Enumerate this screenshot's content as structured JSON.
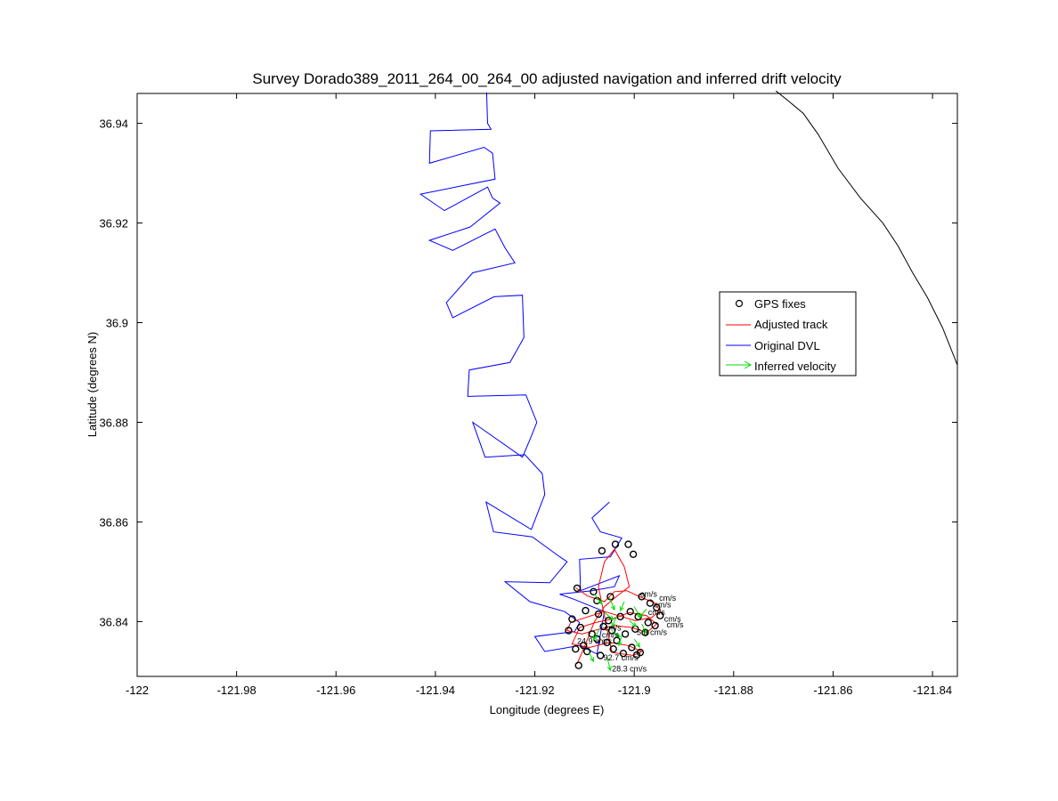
{
  "chart_data": {
    "type": "scatter",
    "title": "Survey Dorado389_2011_264_00_264_00 adjusted navigation and inferred drift velocity",
    "xlabel": "Longitude (degrees E)",
    "ylabel": "Latitude (degrees N)",
    "xlim": [
      -122.0,
      -121.835
    ],
    "ylim": [
      36.829,
      36.946
    ],
    "xticks": [
      -122,
      -121.98,
      -121.96,
      -121.94,
      -121.92,
      -121.9,
      -121.88,
      -121.86,
      -121.84
    ],
    "xtick_labels": [
      "-122",
      "-121.98",
      "-121.96",
      "-121.94",
      "-121.92",
      "-121.9",
      "-121.88",
      "-121.86",
      "-121.84"
    ],
    "yticks": [
      36.84,
      36.86,
      36.88,
      36.9,
      36.92,
      36.94
    ],
    "ytick_labels": [
      "36.84",
      "36.86",
      "36.88",
      "36.9",
      "36.92",
      "36.94"
    ],
    "grid": false,
    "legend_position": "right",
    "colors": {
      "gps": "#000000",
      "adjusted": "#ff0000",
      "dvl": "#0000ff",
      "velocity": "#00dd00",
      "coastline": "#000000"
    },
    "series": [
      {
        "name": "GPS fixes",
        "marker": "circle",
        "x": [
          -121.9115,
          -121.9082,
          -121.9065,
          -121.9038,
          -121.9012,
          -121.9002,
          -121.8985,
          -121.8968,
          -121.8955,
          -121.8948,
          -121.9125,
          -121.9098,
          -121.9072,
          -121.9052,
          -121.9028,
          -121.9008,
          -121.8992,
          -121.8972,
          -121.8958,
          -121.9132,
          -121.9108,
          -121.9085,
          -121.9062,
          -121.9045,
          -121.9018,
          -121.8998,
          -121.8978,
          -121.9118,
          -121.9102,
          -121.9075,
          -121.9055,
          -121.9035,
          -121.9005,
          -121.8988,
          -121.9095,
          -121.9068,
          -121.9042,
          -121.9022,
          -121.8995,
          -121.9112,
          -121.9075,
          -121.9048
        ],
        "y": [
          36.8467,
          36.846,
          36.8542,
          36.8555,
          36.8555,
          36.8535,
          36.845,
          36.8437,
          36.8428,
          36.8412,
          36.8405,
          36.8422,
          36.8415,
          36.8402,
          36.841,
          36.842,
          36.841,
          36.8398,
          36.8392,
          36.8382,
          36.8388,
          36.8375,
          36.839,
          36.8382,
          36.8375,
          36.8385,
          36.8378,
          36.8345,
          36.8352,
          36.8365,
          36.8358,
          36.8362,
          36.8348,
          36.8338,
          36.834,
          36.8332,
          36.8345,
          36.8336,
          36.8333,
          36.8312,
          36.8442,
          36.845
        ]
      },
      {
        "name": "Adjusted track",
        "line": "solid",
        "x": [
          -121.9118,
          -121.9095,
          -121.906,
          -121.904,
          -121.9015,
          -121.8985,
          -121.896,
          -121.8948,
          -121.8965,
          -121.8998,
          -121.9025,
          -121.906,
          -121.9092,
          -121.9128,
          -121.9135,
          -121.9105,
          -121.907,
          -121.904,
          -121.9005,
          -121.8975,
          -121.8955,
          -121.8975,
          -121.901,
          -121.9045,
          -121.9078,
          -121.911,
          -121.9125,
          -121.909,
          -121.905,
          -121.9012,
          -121.8985,
          -121.9002,
          -121.9045,
          -121.9072,
          -121.906,
          -121.904,
          -121.902,
          -121.901,
          -121.903,
          -121.906,
          -121.908,
          -121.91,
          -121.9115
        ],
        "y": [
          36.8468,
          36.8452,
          36.844,
          36.846,
          36.8462,
          36.8448,
          36.8438,
          36.8422,
          36.8408,
          36.8402,
          36.841,
          36.842,
          36.841,
          36.8398,
          36.8382,
          36.8375,
          36.8385,
          36.8392,
          36.8388,
          36.8378,
          36.8395,
          36.8412,
          36.8418,
          36.8405,
          36.8398,
          36.8388,
          36.8355,
          36.8348,
          36.8358,
          36.8352,
          36.834,
          36.8332,
          36.8338,
          36.847,
          36.852,
          36.8545,
          36.851,
          36.847,
          36.8455,
          36.843,
          36.84,
          36.835,
          36.8315
        ]
      },
      {
        "name": "Original DVL",
        "line": "solid",
        "x": [
          -121.9297,
          -121.9295,
          -121.9288,
          -121.941,
          -121.9412,
          -121.9302,
          -121.9285,
          -121.928,
          -121.943,
          -121.9382,
          -121.9295,
          -121.9285,
          -121.927,
          -121.933,
          -121.9412,
          -121.9365,
          -121.928,
          -121.926,
          -121.924,
          -121.9325,
          -121.9378,
          -121.9365,
          -121.9282,
          -121.9225,
          -121.9222,
          -121.925,
          -121.9332,
          -121.9335,
          -121.9218,
          -121.9196,
          -121.921,
          -121.9225,
          -121.9325,
          -121.93,
          -121.922,
          -121.9185,
          -121.918,
          -121.9207,
          -121.9298,
          -121.9283,
          -121.9205,
          -121.915,
          -121.9135,
          -121.917,
          -121.926,
          -121.921,
          -121.914,
          -121.911,
          -121.912,
          -121.92,
          -121.918,
          -121.911,
          -121.9075,
          -121.906,
          -121.9122,
          -121.915,
          -121.9085,
          -121.904,
          -121.903,
          -121.9108,
          -121.911,
          -121.9048,
          -121.9025,
          -121.9068,
          -121.9085,
          -121.905
        ],
        "y": [
          36.9462,
          36.94,
          36.9388,
          36.9385,
          36.932,
          36.9352,
          36.934,
          36.9288,
          36.9258,
          36.9225,
          36.9272,
          36.925,
          36.924,
          36.9192,
          36.9165,
          36.9145,
          36.9188,
          36.915,
          36.912,
          36.91,
          36.904,
          36.901,
          36.9052,
          36.9055,
          36.897,
          36.892,
          36.8905,
          36.8852,
          36.8855,
          36.88,
          36.8765,
          36.873,
          36.88,
          36.873,
          36.8735,
          36.8697,
          36.8655,
          36.8585,
          36.864,
          36.858,
          36.857,
          36.853,
          36.852,
          36.8478,
          36.848,
          36.844,
          36.842,
          36.8398,
          36.838,
          36.837,
          36.834,
          36.8352,
          36.8335,
          36.842,
          36.8445,
          36.8455,
          36.8462,
          36.847,
          36.8492,
          36.8462,
          36.8525,
          36.853,
          36.8568,
          36.858,
          36.8608,
          36.864
        ]
      },
      {
        "name": "Inferred velocity",
        "marker": "arrow",
        "x": [
          -121.908,
          -121.905,
          -121.902,
          -121.9,
          -121.8975,
          -121.906,
          -121.9035,
          -121.901,
          -121.8985,
          -121.907,
          -121.9045,
          -121.9025,
          -121.9,
          -121.9092,
          -121.9055
        ],
        "y": [
          36.8455,
          36.8448,
          36.844,
          36.843,
          36.8425,
          36.8418,
          36.841,
          36.8402,
          36.8395,
          36.8385,
          36.838,
          36.8372,
          36.8365,
          36.834,
          36.833
        ],
        "u": [
          0.0015,
          0.001,
          -0.0008,
          0.0012,
          -0.0015,
          0.0018,
          -0.001,
          0.0014,
          0.0009,
          -0.0012,
          0.0016,
          -0.0006,
          0.0011,
          0.001,
          0.0007
        ],
        "v": [
          -0.002,
          -0.0024,
          -0.0018,
          -0.0022,
          -0.0016,
          -0.0014,
          -0.002,
          -0.0012,
          -0.0018,
          -0.0022,
          -0.001,
          -0.002,
          -0.0016,
          -0.002,
          -0.0028
        ]
      },
      {
        "line": "solid",
        "x": [
          -121.8715,
          -121.869,
          -121.866,
          -121.863,
          -121.859,
          -121.8545,
          -121.85,
          -121.847,
          -121.844,
          -121.841,
          -121.838,
          -121.835
        ],
        "y": [
          36.9465,
          36.9445,
          36.942,
          36.9378,
          36.931,
          36.925,
          36.92,
          36.9155,
          36.91,
          36.905,
          36.899,
          36.8915
        ]
      }
    ],
    "annotations": [
      {
        "text": "cm/s",
        "x": -121.8988,
        "y": 36.845
      },
      {
        "text": "cm/s",
        "x": -121.895,
        "y": 36.8442
      },
      {
        "text": "cm/s",
        "x": -121.896,
        "y": 36.8428
      },
      {
        "text": "cm/s",
        "x": -121.8972,
        "y": 36.8413
      },
      {
        "text": "cm/s",
        "x": -121.894,
        "y": 36.84
      },
      {
        "text": "cm/s",
        "x": -121.8935,
        "y": 36.8388
      },
      {
        "text": "5.0 cm/s",
        "x": -121.8995,
        "y": 36.8373
      },
      {
        "text": "cm/s",
        "x": -121.906,
        "y": 36.8382
      },
      {
        "text": "24.9 cm/s",
        "x": -121.9115,
        "y": 36.8355
      },
      {
        "text": "cm/s",
        "x": -121.9065,
        "y": 36.8368
      },
      {
        "text": "92.7 cm/s",
        "x": -121.9062,
        "y": 36.8322
      },
      {
        "text": "28.3 cm/s",
        "x": -121.9045,
        "y": 36.83
      }
    ]
  }
}
